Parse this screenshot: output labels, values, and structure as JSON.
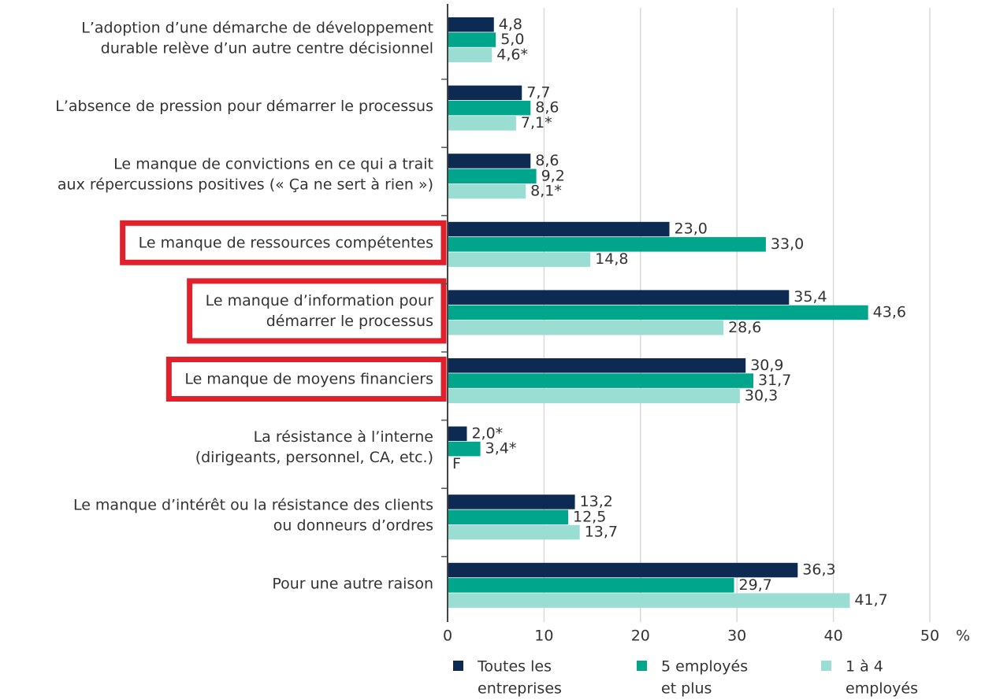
{
  "chart_data": {
    "type": "bar",
    "orientation": "horizontal",
    "categories": [
      [
        "L’adoption d’une démarche de développement",
        "durable relève d’un autre centre décisionnel"
      ],
      [
        "L’absence de pression pour démarrer le processus"
      ],
      [
        "Le manque de convictions en ce qui a trait",
        "aux répercussions positives (« Ça ne sert à rien »)"
      ],
      [
        "Le manque de ressources compétentes"
      ],
      [
        "Le manque d’information pour",
        "démarrer le processus"
      ],
      [
        "Le manque de moyens financiers"
      ],
      [
        "La résistance à l’interne",
        "(dirigeants, personnel, CA, etc.)"
      ],
      [
        "Le manque d’intérêt ou la résistance des clients",
        "ou donneurs d’ordres"
      ],
      [
        "Pour une autre raison"
      ]
    ],
    "series": [
      {
        "name": [
          "Toutes les",
          "entreprises"
        ],
        "color": "#0d2a52",
        "values": [
          4.8,
          7.7,
          8.6,
          23.0,
          35.4,
          30.9,
          2.0,
          13.2,
          36.3
        ],
        "value_labels": [
          "4,8",
          "7,7",
          "8,6",
          "23,0",
          "35,4",
          "30,9",
          "2,0*",
          "13,2",
          "36,3"
        ]
      },
      {
        "name": [
          "5 employés",
          "et plus"
        ],
        "color": "#00a68c",
        "values": [
          5.0,
          8.6,
          9.2,
          33.0,
          43.6,
          31.7,
          3.4,
          12.5,
          29.7
        ],
        "value_labels": [
          "5,0",
          "8,6",
          "9,2",
          "33,0",
          "43,6",
          "31,7",
          "3,4*",
          "12,5",
          "29,7"
        ]
      },
      {
        "name": [
          "1 à 4",
          "employés"
        ],
        "color": "#99ddd3",
        "values": [
          4.6,
          7.1,
          8.1,
          14.8,
          28.6,
          30.3,
          null,
          13.7,
          41.7
        ],
        "value_labels": [
          "4,6*",
          "7,1*",
          "8,1*",
          "14,8",
          "28,6",
          "30,3",
          "F",
          "13,7",
          "41,7"
        ]
      }
    ],
    "xlim": [
      0,
      50
    ],
    "xticks": [
      0,
      10,
      20,
      30,
      40,
      50
    ],
    "x_unit": "%",
    "grid": true,
    "highlighted_categories": [
      3,
      4,
      5
    ],
    "highlight_color": "#e0202a"
  }
}
